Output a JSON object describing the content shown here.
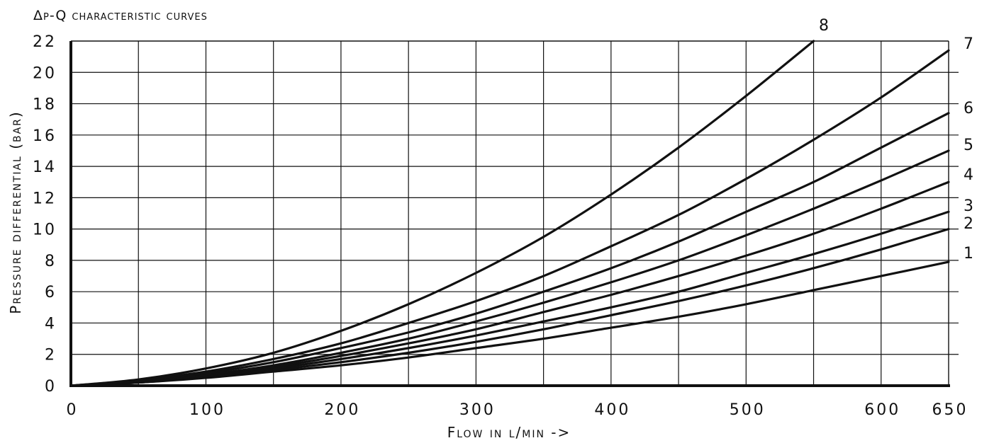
{
  "chart_data": {
    "type": "line",
    "title": "Δp-Q characteristic curves",
    "xlabel": "Flow in l/min ->",
    "ylabel": "Pressure differential (bar)",
    "xlim": [
      0,
      650
    ],
    "ylim": [
      0,
      22
    ],
    "x_ticks": [
      "0",
      "100",
      "200",
      "300",
      "400",
      "500",
      "600",
      "650"
    ],
    "x_tick_values": [
      0,
      100,
      200,
      300,
      400,
      500,
      600,
      650
    ],
    "y_ticks": [
      "0",
      "2",
      "4",
      "6",
      "8",
      "10",
      "12",
      "14",
      "16",
      "18",
      "20",
      "22"
    ],
    "y_tick_values": [
      0,
      2,
      4,
      6,
      8,
      10,
      12,
      14,
      16,
      18,
      20,
      22
    ],
    "x_grid_step": 50,
    "y_grid_step": 2,
    "grid": true,
    "series": [
      {
        "name": "1",
        "x": [
          0,
          50,
          100,
          150,
          200,
          250,
          300,
          350,
          400,
          450,
          500,
          550,
          600,
          650
        ],
        "y": [
          0,
          0.2,
          0.5,
          0.9,
          1.3,
          1.8,
          2.4,
          3.0,
          3.7,
          4.4,
          5.2,
          6.1,
          7.0,
          7.9
        ]
      },
      {
        "name": "2",
        "x": [
          0,
          50,
          100,
          150,
          200,
          250,
          300,
          350,
          400,
          450,
          500,
          550,
          600,
          650
        ],
        "y": [
          0,
          0.2,
          0.55,
          1.0,
          1.5,
          2.1,
          2.8,
          3.6,
          4.5,
          5.4,
          6.4,
          7.5,
          8.7,
          10.0
        ]
      },
      {
        "name": "3",
        "x": [
          0,
          50,
          100,
          150,
          200,
          250,
          300,
          350,
          400,
          450,
          500,
          550,
          600,
          650
        ],
        "y": [
          0,
          0.2,
          0.6,
          1.1,
          1.7,
          2.4,
          3.2,
          4.1,
          5.0,
          6.0,
          7.2,
          8.4,
          9.7,
          11.1
        ]
      },
      {
        "name": "4",
        "x": [
          0,
          50,
          100,
          150,
          200,
          250,
          300,
          350,
          400,
          450,
          500,
          550,
          600,
          650
        ],
        "y": [
          0,
          0.25,
          0.65,
          1.2,
          1.9,
          2.7,
          3.6,
          4.7,
          5.8,
          7.0,
          8.3,
          9.7,
          11.3,
          13.0
        ]
      },
      {
        "name": "5",
        "x": [
          0,
          50,
          100,
          150,
          200,
          250,
          300,
          350,
          400,
          450,
          500,
          550,
          600,
          650
        ],
        "y": [
          0,
          0.25,
          0.7,
          1.3,
          2.1,
          3.0,
          4.1,
          5.3,
          6.6,
          8.0,
          9.6,
          11.3,
          13.1,
          15.0
        ]
      },
      {
        "name": "6",
        "x": [
          0,
          50,
          100,
          150,
          200,
          250,
          300,
          350,
          400,
          450,
          500,
          550,
          600,
          650
        ],
        "y": [
          0,
          0.3,
          0.8,
          1.5,
          2.4,
          3.4,
          4.6,
          6.0,
          7.5,
          9.2,
          11.1,
          13.0,
          15.2,
          17.4
        ]
      },
      {
        "name": "7",
        "x": [
          0,
          50,
          100,
          150,
          200,
          250,
          300,
          350,
          400,
          450,
          500,
          550,
          600,
          650
        ],
        "y": [
          0,
          0.35,
          0.9,
          1.7,
          2.7,
          4.0,
          5.4,
          7.0,
          8.9,
          10.9,
          13.2,
          15.7,
          18.4,
          21.4
        ]
      },
      {
        "name": "8",
        "x": [
          0,
          50,
          100,
          150,
          200,
          250,
          300,
          350,
          400,
          450,
          500,
          550
        ],
        "y": [
          0,
          0.4,
          1.1,
          2.1,
          3.5,
          5.2,
          7.2,
          9.5,
          12.2,
          15.2,
          18.5,
          22.0
        ]
      }
    ]
  }
}
